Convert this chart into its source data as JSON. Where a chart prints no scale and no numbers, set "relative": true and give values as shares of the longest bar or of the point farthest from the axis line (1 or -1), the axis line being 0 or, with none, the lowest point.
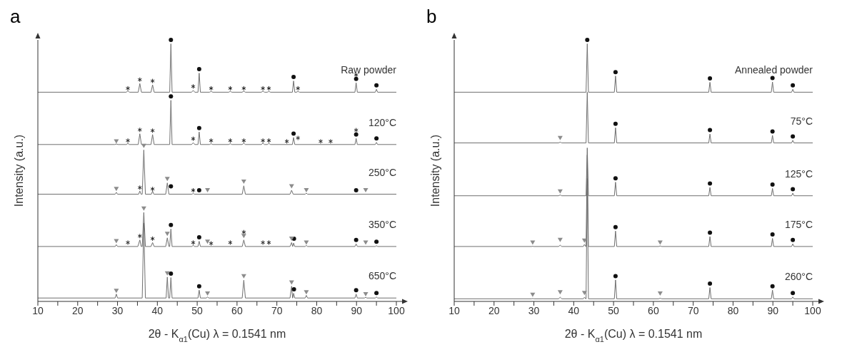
{
  "chart_data": [
    {
      "type": "line",
      "title": "a",
      "xlabel": "2θ - K$_{α1}$(Cu) λ = 0.1541 nm",
      "ylabel": "Intensity (a.u.)",
      "relative": true,
      "xlim": [
        10,
        100
      ],
      "xticks": [
        10,
        {
          "value": 15,
          "label": null
        },
        20,
        {
          "value": 25,
          "label": null
        },
        30,
        {
          "value": 35,
          "label": null
        },
        40,
        {
          "value": 45,
          "label": null
        },
        50,
        {
          "value": 55,
          "label": null
        },
        60,
        {
          "value": 65,
          "label": null
        },
        70,
        {
          "value": 75,
          "label": null
        },
        80,
        {
          "value": 85,
          "label": null
        },
        90,
        {
          "value": 95,
          "label": null
        },
        100
      ],
      "series": [
        {
          "name": "Raw powder",
          "type": "line",
          "color": "#6f6f6f",
          "x": [
            10,
            32.2,
            32.6,
            33,
            35.2,
            35.6,
            36,
            38.4,
            38.8,
            39.2,
            43.1,
            43.4,
            43.7,
            48.6,
            49,
            49.4,
            50.2,
            50.5,
            50.8,
            53.1,
            53.5,
            53.9,
            57.9,
            58.3,
            58.7,
            61.3,
            61.7,
            62.1,
            66.1,
            66.5,
            66.9,
            67.6,
            68,
            68.4,
            73.9,
            74.2,
            74.5,
            74.9,
            75.3,
            75.7,
            89.6,
            89.9,
            90.2,
            94.7,
            95,
            95.3,
            100
          ],
          "values": [
            0.8,
            0.8,
            0.805,
            0.8,
            0.8,
            0.833,
            0.8,
            0.8,
            0.828,
            0.8,
            0.8,
            0.985,
            0.8,
            0.8,
            0.807,
            0.8,
            0.8,
            0.873,
            0.8,
            0.8,
            0.803,
            0.8,
            0.8,
            0.803,
            0.8,
            0.8,
            0.804,
            0.8,
            0.8,
            0.804,
            0.8,
            0.8,
            0.803,
            0.8,
            0.8,
            0.843,
            0.8,
            0.8,
            0.803,
            0.8,
            0.8,
            0.836,
            0.8,
            0.8,
            0.811,
            0.8,
            0.8
          ]
        },
        {
          "name": "120°C",
          "type": "line",
          "color": "#6f6f6f",
          "x": [
            10,
            29.3,
            29.7,
            30.1,
            32.2,
            32.6,
            33,
            35.2,
            35.6,
            36,
            38.4,
            38.8,
            39.2,
            43.1,
            43.4,
            43.7,
            48.6,
            49,
            49.4,
            50.2,
            50.5,
            50.8,
            53.1,
            53.5,
            53.9,
            57.9,
            58.3,
            58.7,
            61.3,
            61.7,
            62.1,
            66.1,
            66.5,
            66.9,
            67.6,
            68,
            68.4,
            73.9,
            74.2,
            74.5,
            89.6,
            89.9,
            90.2,
            94.7,
            95,
            95.3,
            100
          ],
          "values": [
            0.6,
            0.6,
            0.602,
            0.6,
            0.6,
            0.604,
            0.6,
            0.6,
            0.641,
            0.6,
            0.6,
            0.638,
            0.6,
            0.6,
            0.769,
            0.6,
            0.6,
            0.607,
            0.6,
            0.6,
            0.648,
            0.6,
            0.6,
            0.603,
            0.6,
            0.6,
            0.603,
            0.6,
            0.6,
            0.605,
            0.6,
            0.6,
            0.605,
            0.6,
            0.6,
            0.604,
            0.6,
            0.6,
            0.627,
            0.6,
            0.6,
            0.623,
            0.6,
            0.6,
            0.608,
            0.6,
            0.6
          ]
        },
        {
          "name": "250°C",
          "type": "line",
          "color": "#6f6f6f",
          "x": [
            10,
            29.4,
            29.7,
            30,
            35.3,
            35.6,
            35.9,
            36.2,
            36.6,
            37,
            38.5,
            38.8,
            39.1,
            42.1,
            42.5,
            42.9,
            48.7,
            49,
            49.3,
            61.3,
            61.7,
            62.1,
            73.3,
            73.7,
            74.1,
            77.1,
            77.4,
            77.7,
            100
          ],
          "values": [
            0.41,
            0.41,
            0.417,
            0.41,
            0.41,
            0.422,
            0.41,
            0.41,
            0.579,
            0.41,
            0.41,
            0.422,
            0.41,
            0.41,
            0.453,
            0.41,
            0.41,
            0.413,
            0.41,
            0.41,
            0.442,
            0.41,
            0.41,
            0.425,
            0.41,
            0.41,
            0.414,
            0.41,
            0.41
          ]
        },
        {
          "name": "350°C",
          "type": "line",
          "color": "#6f6f6f",
          "x": [
            10,
            29.4,
            29.7,
            30,
            35.1,
            35.6,
            35.95,
            36.2,
            36.6,
            37,
            38.4,
            38.8,
            39.2,
            42.1,
            42.5,
            42.9,
            43.1,
            43.4,
            43.7,
            48.7,
            49,
            49.3,
            50.2,
            50.5,
            50.8,
            61.3,
            61.7,
            62.1,
            73.3,
            73.7,
            73.95,
            74,
            74.2,
            74.5,
            77.1,
            77.4,
            77.7,
            89.6,
            89.9,
            90.2,
            94.7,
            95,
            95.3,
            100
          ],
          "values": [
            0.21,
            0.21,
            0.217,
            0.21,
            0.21,
            0.235,
            0.21,
            0.21,
            0.34,
            0.21,
            0.21,
            0.225,
            0.21,
            0.21,
            0.243,
            0.21,
            0.21,
            0.277,
            0.21,
            0.21,
            0.215,
            0.21,
            0.21,
            0.23,
            0.21,
            0.21,
            0.235,
            0.21,
            0.21,
            0.225,
            0.21,
            0.21,
            0.223,
            0.21,
            0.21,
            0.214,
            0.21,
            0.21,
            0.22,
            0.21,
            0.21,
            0.213,
            0.21,
            0.21
          ]
        },
        {
          "name": "650°C",
          "type": "line",
          "color": "#6f6f6f",
          "x": [
            10,
            29.4,
            29.7,
            30,
            36.2,
            36.6,
            37,
            42.2,
            42.5,
            42.8,
            43.1,
            43.4,
            43.7,
            50.2,
            50.5,
            50.8,
            52.3,
            52.6,
            52.9,
            61.3,
            61.7,
            62.1,
            73.3,
            73.7,
            73.95,
            74,
            74.2,
            74.5,
            77.1,
            77.4,
            77.7,
            89.6,
            89.9,
            90.2,
            92,
            92.3,
            92.6,
            94.7,
            95,
            95.3,
            100
          ],
          "values": [
            0.013,
            0.013,
            0.028,
            0.013,
            0.013,
            0.3,
            0.013,
            0.013,
            0.093,
            0.013,
            0.013,
            0.091,
            0.013,
            0.013,
            0.043,
            0.013,
            0.013,
            0.017,
            0.013,
            0.013,
            0.081,
            0.013,
            0.013,
            0.058,
            0.013,
            0.013,
            0.031,
            0.013,
            0.013,
            0.023,
            0.013,
            0.013,
            0.028,
            0.013,
            0.013,
            0.016,
            0.013,
            0.013,
            0.017,
            0.013,
            0.013
          ]
        },
        {
          "type": "scatter",
          "marker": "circle",
          "color": "#111111",
          "x": [
            43.4,
            50.5,
            74.2,
            89.9,
            95,
            43.4,
            50.5,
            74.2,
            89.9,
            95,
            43.4,
            50.5,
            89.9,
            43.4,
            50.5,
            74.3,
            89.9,
            95,
            43.4,
            50.5,
            74.3,
            89.9,
            95
          ],
          "values": [
            1.0,
            0.888,
            0.858,
            0.851,
            0.826,
            0.784,
            0.663,
            0.642,
            0.638,
            0.623,
            0.44,
            0.425,
            0.425,
            0.292,
            0.245,
            0.24,
            0.235,
            0.228,
            0.106,
            0.058,
            0.046,
            0.043,
            0.032
          ]
        },
        {
          "type": "scatter",
          "marker": "cross",
          "color": "#222222",
          "x": [
            32.6,
            35.6,
            38.8,
            49,
            53.5,
            58.3,
            61.7,
            66.5,
            68,
            75.3,
            89.9,
            32.6,
            35.6,
            38.8,
            49,
            53.5,
            58.3,
            61.7,
            66.5,
            68,
            72.5,
            75.3,
            81,
            83.5,
            89.9,
            35.6,
            38.8,
            49,
            32.6,
            35.6,
            38.8,
            49,
            53.5,
            58.3,
            61.7,
            66.5,
            68
          ],
          "values": [
            0.815,
            0.848,
            0.843,
            0.822,
            0.815,
            0.815,
            0.815,
            0.815,
            0.815,
            0.815,
            0.866,
            0.615,
            0.656,
            0.653,
            0.622,
            0.615,
            0.615,
            0.615,
            0.615,
            0.615,
            0.612,
            0.625,
            0.612,
            0.612,
            0.655,
            0.435,
            0.43,
            0.425,
            0.225,
            0.25,
            0.24,
            0.225,
            0.222,
            0.225,
            0.265,
            0.225,
            0.225
          ]
        },
        {
          "type": "scatter",
          "marker": "triangle",
          "color": "#8c8c8c",
          "x": [
            29.7,
            29.7,
            36.6,
            42.5,
            52.6,
            61.7,
            73.7,
            77.4,
            92.3,
            29.7,
            36.6,
            42.5,
            52.6,
            61.7,
            73.7,
            77.4,
            92.3,
            29.7,
            42.5,
            52.6,
            61.7,
            73.7,
            77.4,
            92.3
          ],
          "values": [
            0.612,
            0.43,
            0.595,
            0.468,
            0.425,
            0.458,
            0.44,
            0.425,
            0.425,
            0.23,
            0.355,
            0.258,
            0.228,
            0.25,
            0.24,
            0.225,
            0.225,
            0.04,
            0.107,
            0.03,
            0.096,
            0.072,
            0.035,
            0.027
          ]
        }
      ]
    },
    {
      "type": "line",
      "title": "b",
      "xlabel": "2θ - K$_{α1}$(Cu) λ = 0.1541 nm",
      "ylabel": "Intensity (a.u.)",
      "relative": true,
      "xlim": [
        10,
        100
      ],
      "xticks": [
        10,
        {
          "value": 15,
          "label": null
        },
        20,
        {
          "value": 25,
          "label": null
        },
        30,
        {
          "value": 35,
          "label": null
        },
        40,
        {
          "value": 45,
          "label": null
        },
        50,
        {
          "value": 55,
          "label": null
        },
        60,
        {
          "value": 65,
          "label": null
        },
        70,
        {
          "value": 75,
          "label": null
        },
        80,
        {
          "value": 85,
          "label": null
        },
        90,
        {
          "value": 95,
          "label": null
        },
        100
      ],
      "series": [
        {
          "name": "Annealed powder",
          "type": "line",
          "color": "#6f6f6f",
          "x": [
            10,
            43.1,
            43.4,
            43.7,
            50.2,
            50.5,
            50.8,
            73.9,
            74.2,
            74.5,
            89.6,
            89.9,
            90.2,
            94.7,
            95,
            95.3,
            100
          ],
          "values": [
            0.8,
            0.8,
            0.985,
            0.8,
            0.8,
            0.862,
            0.8,
            0.8,
            0.838,
            0.8,
            0.8,
            0.839,
            0.8,
            0.8,
            0.811,
            0.8,
            0.8
          ]
        },
        {
          "name": "75°C",
          "type": "line",
          "color": "#6f6f6f",
          "x": [
            10,
            36.2,
            36.6,
            37,
            43.1,
            43.4,
            43.7,
            50.2,
            50.5,
            50.8,
            73.9,
            74.2,
            74.5,
            89.6,
            89.9,
            90.2,
            94.7,
            95,
            95.3,
            100
          ],
          "values": [
            0.606,
            0.606,
            0.609,
            0.606,
            0.606,
            0.8,
            0.606,
            0.606,
            0.664,
            0.606,
            0.606,
            0.64,
            0.606,
            0.606,
            0.635,
            0.606,
            0.606,
            0.616,
            0.606,
            0.606
          ]
        },
        {
          "name": "125°C",
          "type": "line",
          "color": "#6f6f6f",
          "x": [
            10,
            36.2,
            36.6,
            37,
            43.1,
            43.4,
            43.7,
            50.2,
            50.5,
            50.8,
            73.9,
            74.2,
            74.5,
            89.6,
            89.9,
            90.2,
            94.7,
            95,
            95.3,
            100
          ],
          "values": [
            0.404,
            0.404,
            0.407,
            0.404,
            0.404,
            0.587,
            0.404,
            0.404,
            0.456,
            0.404,
            0.404,
            0.436,
            0.404,
            0.404,
            0.432,
            0.404,
            0.404,
            0.414,
            0.404,
            0.404
          ]
        },
        {
          "name": "175°C",
          "type": "line",
          "color": "#6f6f6f",
          "x": [
            10,
            29.4,
            29.7,
            30,
            36.2,
            36.6,
            37,
            42.4,
            42.7,
            43,
            43.1,
            43.4,
            43.7,
            50.2,
            50.5,
            50.8,
            61.3,
            61.7,
            62.1,
            73.9,
            74.2,
            74.5,
            89.6,
            89.9,
            90.2,
            94.7,
            95,
            95.3,
            100
          ],
          "values": [
            0.21,
            0.21,
            0.211,
            0.21,
            0.21,
            0.215,
            0.21,
            0.21,
            0.218,
            0.21,
            0.21,
            0.56,
            0.21,
            0.21,
            0.269,
            0.21,
            0.21,
            0.212,
            0.21,
            0.21,
            0.248,
            0.21,
            0.21,
            0.241,
            0.21,
            0.21,
            0.22,
            0.21,
            0.21
          ]
        },
        {
          "name": "260°C",
          "type": "line",
          "color": "#6f6f6f",
          "x": [
            10,
            29.4,
            29.7,
            30,
            36.2,
            36.6,
            37,
            42.4,
            42.7,
            43,
            43.1,
            43.4,
            43.7,
            50.2,
            50.5,
            50.8,
            61.3,
            61.7,
            62.1,
            73.9,
            74.2,
            74.5,
            89.6,
            89.9,
            90.2,
            94.7,
            95,
            95.3,
            100
          ],
          "values": [
            0.01,
            0.01,
            0.011,
            0.01,
            0.01,
            0.016,
            0.01,
            0.01,
            0.016,
            0.01,
            0.01,
            0.47,
            0.01,
            0.01,
            0.082,
            0.01,
            0.01,
            0.012,
            0.01,
            0.01,
            0.053,
            0.01,
            0.01,
            0.043,
            0.01,
            0.01,
            0.017,
            0.01,
            0.01
          ]
        },
        {
          "type": "scatter",
          "marker": "circle",
          "color": "#111111",
          "x": [
            43.4,
            50.5,
            74.2,
            89.9,
            95,
            50.5,
            74.2,
            89.9,
            95,
            50.5,
            74.2,
            89.9,
            95,
            50.5,
            74.2,
            89.9,
            95,
            50.5,
            74.2,
            89.9,
            95
          ],
          "values": [
            1.0,
            0.877,
            0.853,
            0.854,
            0.826,
            0.679,
            0.655,
            0.65,
            0.631,
            0.471,
            0.451,
            0.447,
            0.429,
            0.284,
            0.263,
            0.256,
            0.235,
            0.097,
            0.068,
            0.058,
            0.032
          ]
        },
        {
          "type": "scatter",
          "marker": "triangle",
          "color": "#8c8c8c",
          "x": [
            36.6,
            36.6,
            29.7,
            36.6,
            42.7,
            61.7,
            29.7,
            36.6,
            42.7,
            61.7
          ],
          "values": [
            0.625,
            0.42,
            0.225,
            0.235,
            0.232,
            0.225,
            0.025,
            0.035,
            0.032,
            0.03
          ]
        }
      ]
    }
  ]
}
